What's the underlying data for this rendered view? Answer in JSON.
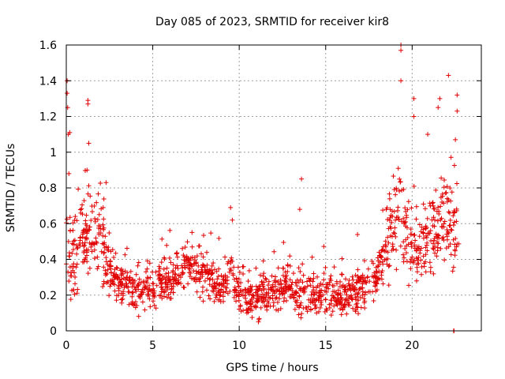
{
  "chart_data": {
    "type": "scatter",
    "title": "Day 085 of 2023, SRMTID for receiver kir8",
    "xlabel": "GPS time / hours",
    "ylabel": "SRMTID / TECUs",
    "xlim": [
      0,
      24
    ],
    "ylim": [
      0,
      1.6
    ],
    "xticks": [
      0,
      5,
      10,
      15,
      20
    ],
    "xtick_labels": [
      "0",
      "5",
      "10",
      "15",
      "20"
    ],
    "yticks": [
      0,
      0.2,
      0.4,
      0.6,
      0.8,
      1.0,
      1.2,
      1.4,
      1.6
    ],
    "ytick_labels": [
      "0",
      "0.2",
      "0.4",
      "0.6",
      "0.8",
      "1",
      "1.2",
      "1.4",
      "1.6"
    ],
    "grid": true,
    "marker": "+",
    "color": "#e00000",
    "series": [
      {
        "name": "SRMTID",
        "trend": [
          [
            0,
            0.45
          ],
          [
            0.5,
            0.4
          ],
          [
            1.0,
            0.5
          ],
          [
            1.5,
            0.55
          ],
          [
            2.0,
            0.5
          ],
          [
            2.5,
            0.35
          ],
          [
            3.0,
            0.28
          ],
          [
            4.0,
            0.22
          ],
          [
            5.0,
            0.24
          ],
          [
            6.0,
            0.28
          ],
          [
            7.0,
            0.38
          ],
          [
            8.0,
            0.3
          ],
          [
            9.0,
            0.25
          ],
          [
            9.5,
            0.35
          ],
          [
            10.0,
            0.22
          ],
          [
            11.0,
            0.18
          ],
          [
            12.0,
            0.22
          ],
          [
            13.0,
            0.25
          ],
          [
            14.0,
            0.2
          ],
          [
            15.0,
            0.22
          ],
          [
            16.0,
            0.2
          ],
          [
            17.0,
            0.22
          ],
          [
            18.0,
            0.3
          ],
          [
            18.5,
            0.45
          ],
          [
            19.0,
            0.65
          ],
          [
            19.5,
            0.6
          ],
          [
            20.0,
            0.5
          ],
          [
            20.5,
            0.45
          ],
          [
            21.0,
            0.55
          ],
          [
            21.5,
            0.6
          ],
          [
            22.0,
            0.65
          ],
          [
            22.7,
            0.55
          ]
        ],
        "spread": 0.09,
        "spikes": [
          [
            0.05,
            1.4
          ],
          [
            0.05,
            1.33
          ],
          [
            0.08,
            1.25
          ],
          [
            0.12,
            1.1
          ],
          [
            0.2,
            1.11
          ],
          [
            0.15,
            0.88
          ],
          [
            1.25,
            1.29
          ],
          [
            1.25,
            1.27
          ],
          [
            1.3,
            1.05
          ],
          [
            1.2,
            0.9
          ],
          [
            2.3,
            0.83
          ],
          [
            9.5,
            0.69
          ],
          [
            9.6,
            0.62
          ],
          [
            13.6,
            0.85
          ],
          [
            13.5,
            0.68
          ],
          [
            19.35,
            1.6
          ],
          [
            19.35,
            1.57
          ],
          [
            19.35,
            1.4
          ],
          [
            20.1,
            1.3
          ],
          [
            20.1,
            1.2
          ],
          [
            20.9,
            1.1
          ],
          [
            21.5,
            1.25
          ],
          [
            21.6,
            1.3
          ],
          [
            22.1,
            1.43
          ],
          [
            22.6,
            1.32
          ],
          [
            22.6,
            1.23
          ],
          [
            22.5,
            1.07
          ],
          [
            22.4,
            0.0
          ],
          [
            22.42,
            0.0
          ]
        ]
      }
    ]
  }
}
